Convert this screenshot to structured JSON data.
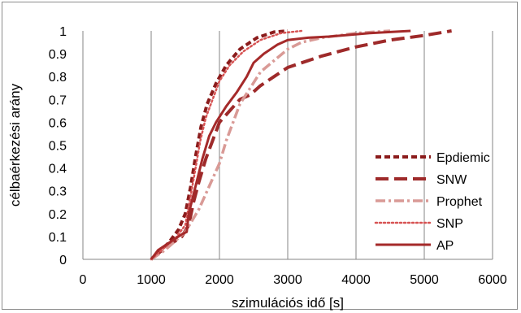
{
  "chart_data": {
    "type": "line",
    "title": "",
    "xlabel": "szimulációs idő [s]",
    "ylabel": "célbaérkezési arány",
    "xlim": [
      0,
      6000
    ],
    "ylim": [
      0,
      1
    ],
    "xticks": [
      "0",
      "1000",
      "2000",
      "3000",
      "4000",
      "5000",
      "6000"
    ],
    "yticks": [
      "0",
      "0.1",
      "0.2",
      "0.3",
      "0.4",
      "0.5",
      "0.6",
      "0.7",
      "0.8",
      "0.9",
      "1"
    ],
    "grid": "vertical",
    "legend_position": "right",
    "series": [
      {
        "name": "Epdiemic",
        "color": "#8b1c1c",
        "style": "short-dash",
        "points": [
          [
            1000,
            0
          ],
          [
            1100,
            0.03
          ],
          [
            1250,
            0.07
          ],
          [
            1400,
            0.13
          ],
          [
            1500,
            0.2
          ],
          [
            1580,
            0.32
          ],
          [
            1650,
            0.45
          ],
          [
            1730,
            0.58
          ],
          [
            1820,
            0.68
          ],
          [
            1950,
            0.77
          ],
          [
            2100,
            0.85
          ],
          [
            2300,
            0.92
          ],
          [
            2550,
            0.97
          ],
          [
            2800,
            0.995
          ],
          [
            3000,
            1
          ]
        ]
      },
      {
        "name": "SNW",
        "color": "#9e2a2a",
        "style": "long-dash",
        "points": [
          [
            1000,
            0
          ],
          [
            1200,
            0.05
          ],
          [
            1450,
            0.1
          ],
          [
            1550,
            0.15
          ],
          [
            1620,
            0.25
          ],
          [
            1700,
            0.34
          ],
          [
            1800,
            0.44
          ],
          [
            1900,
            0.52
          ],
          [
            2000,
            0.6
          ],
          [
            2150,
            0.65
          ],
          [
            2300,
            0.7
          ],
          [
            2450,
            0.72
          ],
          [
            2600,
            0.76
          ],
          [
            2800,
            0.8
          ],
          [
            3000,
            0.84
          ],
          [
            3500,
            0.89
          ],
          [
            4000,
            0.93
          ],
          [
            4500,
            0.96
          ],
          [
            5000,
            0.98
          ],
          [
            5400,
            1
          ]
        ]
      },
      {
        "name": "Prophet",
        "color": "#d99a96",
        "style": "dash-dot",
        "points": [
          [
            1000,
            0
          ],
          [
            1200,
            0.04
          ],
          [
            1500,
            0.12
          ],
          [
            1700,
            0.22
          ],
          [
            1850,
            0.32
          ],
          [
            2000,
            0.42
          ],
          [
            2100,
            0.52
          ],
          [
            2200,
            0.6
          ],
          [
            2300,
            0.68
          ],
          [
            2450,
            0.75
          ],
          [
            2600,
            0.82
          ],
          [
            2800,
            0.87
          ],
          [
            3000,
            0.92
          ],
          [
            3200,
            0.95
          ],
          [
            3500,
            0.97
          ],
          [
            4000,
            0.99
          ],
          [
            4500,
            1
          ]
        ]
      },
      {
        "name": "SNP",
        "color": "#d75454",
        "style": "dotted",
        "points": [
          [
            1000,
            0
          ],
          [
            1150,
            0.04
          ],
          [
            1350,
            0.09
          ],
          [
            1500,
            0.15
          ],
          [
            1580,
            0.28
          ],
          [
            1650,
            0.4
          ],
          [
            1720,
            0.52
          ],
          [
            1800,
            0.62
          ],
          [
            1900,
            0.7
          ],
          [
            2000,
            0.78
          ],
          [
            2150,
            0.85
          ],
          [
            2350,
            0.91
          ],
          [
            2600,
            0.96
          ],
          [
            2900,
            0.99
          ],
          [
            3200,
            1
          ]
        ]
      },
      {
        "name": "AP",
        "color": "#a52a2a",
        "style": "solid",
        "points": [
          [
            1000,
            0
          ],
          [
            1100,
            0.04
          ],
          [
            1300,
            0.08
          ],
          [
            1450,
            0.11
          ],
          [
            1520,
            0.12
          ],
          [
            1550,
            0.2
          ],
          [
            1650,
            0.32
          ],
          [
            1750,
            0.44
          ],
          [
            1850,
            0.54
          ],
          [
            1950,
            0.6
          ],
          [
            2100,
            0.67
          ],
          [
            2250,
            0.73
          ],
          [
            2400,
            0.8
          ],
          [
            2500,
            0.86
          ],
          [
            2650,
            0.9
          ],
          [
            2850,
            0.94
          ],
          [
            3000,
            0.96
          ],
          [
            3300,
            0.97
          ],
          [
            3600,
            0.975
          ],
          [
            3800,
            0.98
          ],
          [
            4200,
            0.99
          ],
          [
            4800,
            1
          ]
        ]
      }
    ]
  }
}
